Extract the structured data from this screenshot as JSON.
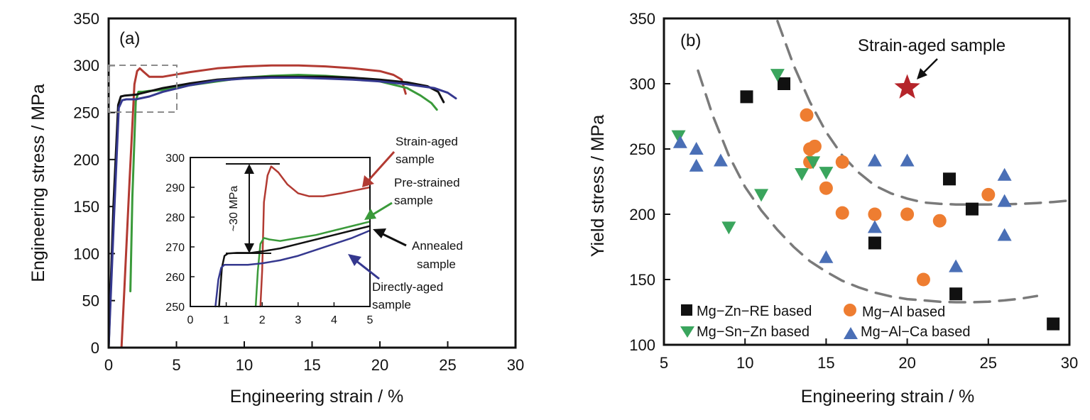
{
  "chart_data": [
    {
      "type": "line",
      "panel_label": "(a)",
      "xlabel": "Engineering strain / %",
      "ylabel": "Engineering stress / MPa",
      "xlim": [
        0,
        30
      ],
      "ylim": [
        0,
        350
      ],
      "xticks": [
        "0",
        "5",
        "10",
        "15",
        "20",
        "25",
        "30"
      ],
      "yticks": [
        "0",
        "50",
        "100",
        "150",
        "200",
        "250",
        "300",
        "350"
      ],
      "grid": false,
      "series": [
        {
          "name": "Strain-aged sample",
          "color": "#b23a32",
          "x": [
            0,
            0.95,
            1.15,
            1.55,
            1.9,
            2.1,
            2.3,
            2.6,
            3,
            4,
            6,
            8,
            10,
            12,
            14,
            16,
            18,
            20,
            21,
            21.6,
            21.9
          ],
          "y": [
            0,
            0,
            60,
            180,
            280,
            294,
            297,
            293,
            288,
            288,
            293,
            297,
            299,
            300,
            300,
            299,
            297,
            294,
            290,
            285,
            270
          ]
        },
        {
          "name": "Pre-strained sample",
          "color": "#3a9a3a",
          "x": [
            1.6,
            1.75,
            2.0,
            2.2,
            2.5,
            3,
            4,
            6,
            8,
            10,
            12,
            14,
            16,
            18,
            20,
            22,
            23,
            23.8,
            24.2
          ],
          "y": [
            60,
            160,
            262,
            272,
            272,
            273,
            274,
            279,
            283,
            287,
            289,
            290,
            289,
            287,
            283,
            276,
            268,
            260,
            253
          ]
        },
        {
          "name": "Annealed sample",
          "color": "#111111",
          "x": [
            0,
            0.35,
            0.7,
            0.9,
            1.2,
            2,
            4,
            6,
            8,
            10,
            12,
            14,
            16,
            18,
            20,
            22,
            23.5,
            24.3,
            24.7
          ],
          "y": [
            0,
            150,
            258,
            267,
            268,
            269,
            276,
            281,
            285,
            287,
            288,
            288,
            288,
            287,
            285,
            282,
            278,
            272,
            261
          ]
        },
        {
          "name": "Directly-aged sample",
          "color": "#35388f",
          "x": [
            0,
            0.4,
            0.75,
            1,
            1.3,
            2,
            3,
            4,
            6,
            8,
            10,
            12,
            14,
            16,
            18,
            20,
            22,
            24,
            25,
            25.6
          ],
          "y": [
            0,
            140,
            255,
            263,
            264,
            264,
            267,
            272,
            279,
            284,
            286,
            287,
            287,
            286,
            285,
            283,
            280,
            276,
            271,
            265
          ]
        }
      ],
      "inset": {
        "xlim": [
          0,
          5
        ],
        "ylim": [
          250,
          300
        ],
        "xticks": [
          "0",
          "1",
          "2",
          "3",
          "4",
          "5"
        ],
        "yticks": [
          "250",
          "260",
          "270",
          "280",
          "290",
          "300"
        ],
        "annotation": "~30 MPa",
        "series": [
          {
            "name": "Strain-aged sample",
            "color": "#b23a32",
            "x": [
              1.95,
              2.0,
              2.05,
              2.15,
              2.25,
              2.45,
              2.7,
              3.0,
              3.3,
              3.7,
              4.2,
              4.6,
              5.0
            ],
            "y": [
              250,
              262,
              285,
              294,
              297,
              295,
              291,
              288,
              287,
              287,
              288,
              289,
              290
            ]
          },
          {
            "name": "Pre-strained sample",
            "color": "#3a9a3a",
            "x": [
              1.82,
              1.88,
              1.95,
              2.05,
              2.2,
              2.5,
              3.0,
              3.5,
              4.0,
              4.5,
              5.0
            ],
            "y": [
              250,
              262,
              271,
              273,
              272.5,
              272,
              273,
              274,
              275.5,
              277,
              278.5
            ]
          },
          {
            "name": "Annealed sample",
            "color": "#111111",
            "x": [
              0.8,
              0.88,
              0.95,
              1.05,
              1.3,
              1.7,
              2.0,
              2.5,
              3.0,
              3.5,
              4.0,
              4.5,
              5.0
            ],
            "y": [
              250,
              263,
              267,
              267.8,
              268,
              268,
              268.5,
              269.5,
              271,
              272.5,
              274,
              275.5,
              277
            ]
          },
          {
            "name": "Directly-aged sample",
            "color": "#35388f",
            "x": [
              0.7,
              0.78,
              0.86,
              0.95,
              1.2,
              1.6,
              2.0,
              2.5,
              3.0,
              3.5,
              4.0,
              4.5,
              5.0
            ],
            "y": [
              250,
              259,
              263,
              264,
              264,
              264,
              264.5,
              265.5,
              267,
              269,
              271,
              273,
              275.5
            ]
          }
        ]
      },
      "callouts": [
        {
          "lines": [
            "Strain-aged",
            "sample"
          ],
          "color": "#b23a32"
        },
        {
          "lines": [
            "Pre-strained",
            "sample"
          ],
          "color": "#3a9a3a"
        },
        {
          "lines": [
            "Annealed",
            "sample"
          ],
          "color": "#111111"
        },
        {
          "lines": [
            "Directly-aged",
            "sample"
          ],
          "color": "#35388f"
        }
      ]
    },
    {
      "type": "scatter",
      "panel_label": "(b)",
      "xlabel": "Engineering strain / %",
      "ylabel": "Yield stress / MPa",
      "xlim": [
        5,
        30
      ],
      "ylim": [
        100,
        350
      ],
      "xticks": [
        "5",
        "10",
        "15",
        "20",
        "25",
        "30"
      ],
      "yticks": [
        "100",
        "150",
        "200",
        "250",
        "300",
        "350"
      ],
      "grid": false,
      "legend_position": "bottom-left",
      "series": [
        {
          "name": "Mg−Zn−RE based",
          "marker": "square",
          "color": "#111111",
          "points": [
            [
              10.1,
              290
            ],
            [
              12.4,
              300
            ],
            [
              18,
              178
            ],
            [
              22.6,
              227
            ],
            [
              24,
              204
            ],
            [
              23,
              139
            ],
            [
              29,
              116
            ]
          ]
        },
        {
          "name": "Mg−Al based",
          "marker": "circle",
          "color": "#ee7d31",
          "points": [
            [
              13.8,
              276
            ],
            [
              14,
              250
            ],
            [
              14.3,
              252
            ],
            [
              14,
              240
            ],
            [
              15,
              220
            ],
            [
              16,
              240
            ],
            [
              16,
              201
            ],
            [
              18,
              200
            ],
            [
              20,
              200
            ],
            [
              22,
              195
            ],
            [
              25,
              215
            ],
            [
              21,
              150
            ]
          ]
        },
        {
          "name": "Mg−Sn−Zn based",
          "marker": "triangle-down",
          "color": "#3aa55d",
          "points": [
            [
              5.9,
              260
            ],
            [
              12,
              307
            ],
            [
              11,
              215
            ],
            [
              9,
              190
            ],
            [
              13.5,
              231
            ],
            [
              14.2,
              240
            ],
            [
              15,
              232
            ]
          ]
        },
        {
          "name": "Mg−Al−Ca based",
          "marker": "triangle-up",
          "color": "#4a6fb6",
          "points": [
            [
              6,
              255
            ],
            [
              7,
              250
            ],
            [
              7,
              237
            ],
            [
              8.5,
              241
            ],
            [
              15,
              167
            ],
            [
              18,
              241
            ],
            [
              18,
              190
            ],
            [
              20,
              241
            ],
            [
              23,
              160
            ],
            [
              26,
              230
            ],
            [
              26,
              210
            ],
            [
              26,
              184
            ]
          ]
        }
      ],
      "highlight": {
        "label": "Strain-aged sample",
        "marker": "star",
        "color": "#b5242a",
        "x": 20,
        "y": 297
      },
      "trend_curves": [
        {
          "style": "dashed",
          "color": "#7a7a7a",
          "x": [
            12,
            13,
            14,
            15,
            16,
            17,
            18,
            19,
            20,
            21,
            22,
            23,
            24,
            25,
            26,
            27,
            28,
            29,
            30
          ],
          "y": [
            348,
            314,
            286,
            263,
            245,
            232,
            222,
            216,
            212,
            209,
            208,
            207.5,
            207.5,
            207.5,
            207.6,
            208,
            208.6,
            209.4,
            210.5
          ]
        },
        {
          "style": "dashed",
          "color": "#7a7a7a",
          "x": [
            7.1,
            8,
            9,
            10,
            11,
            12,
            13,
            14,
            15,
            16,
            17,
            18,
            19,
            20,
            21,
            22,
            23,
            24,
            25,
            26,
            27,
            28
          ],
          "y": [
            310,
            276,
            245,
            221,
            203,
            188,
            175,
            164,
            156,
            149,
            144,
            140,
            137,
            135,
            134,
            133,
            132.6,
            132.6,
            133,
            134,
            135.4,
            137.4
          ]
        }
      ]
    }
  ]
}
